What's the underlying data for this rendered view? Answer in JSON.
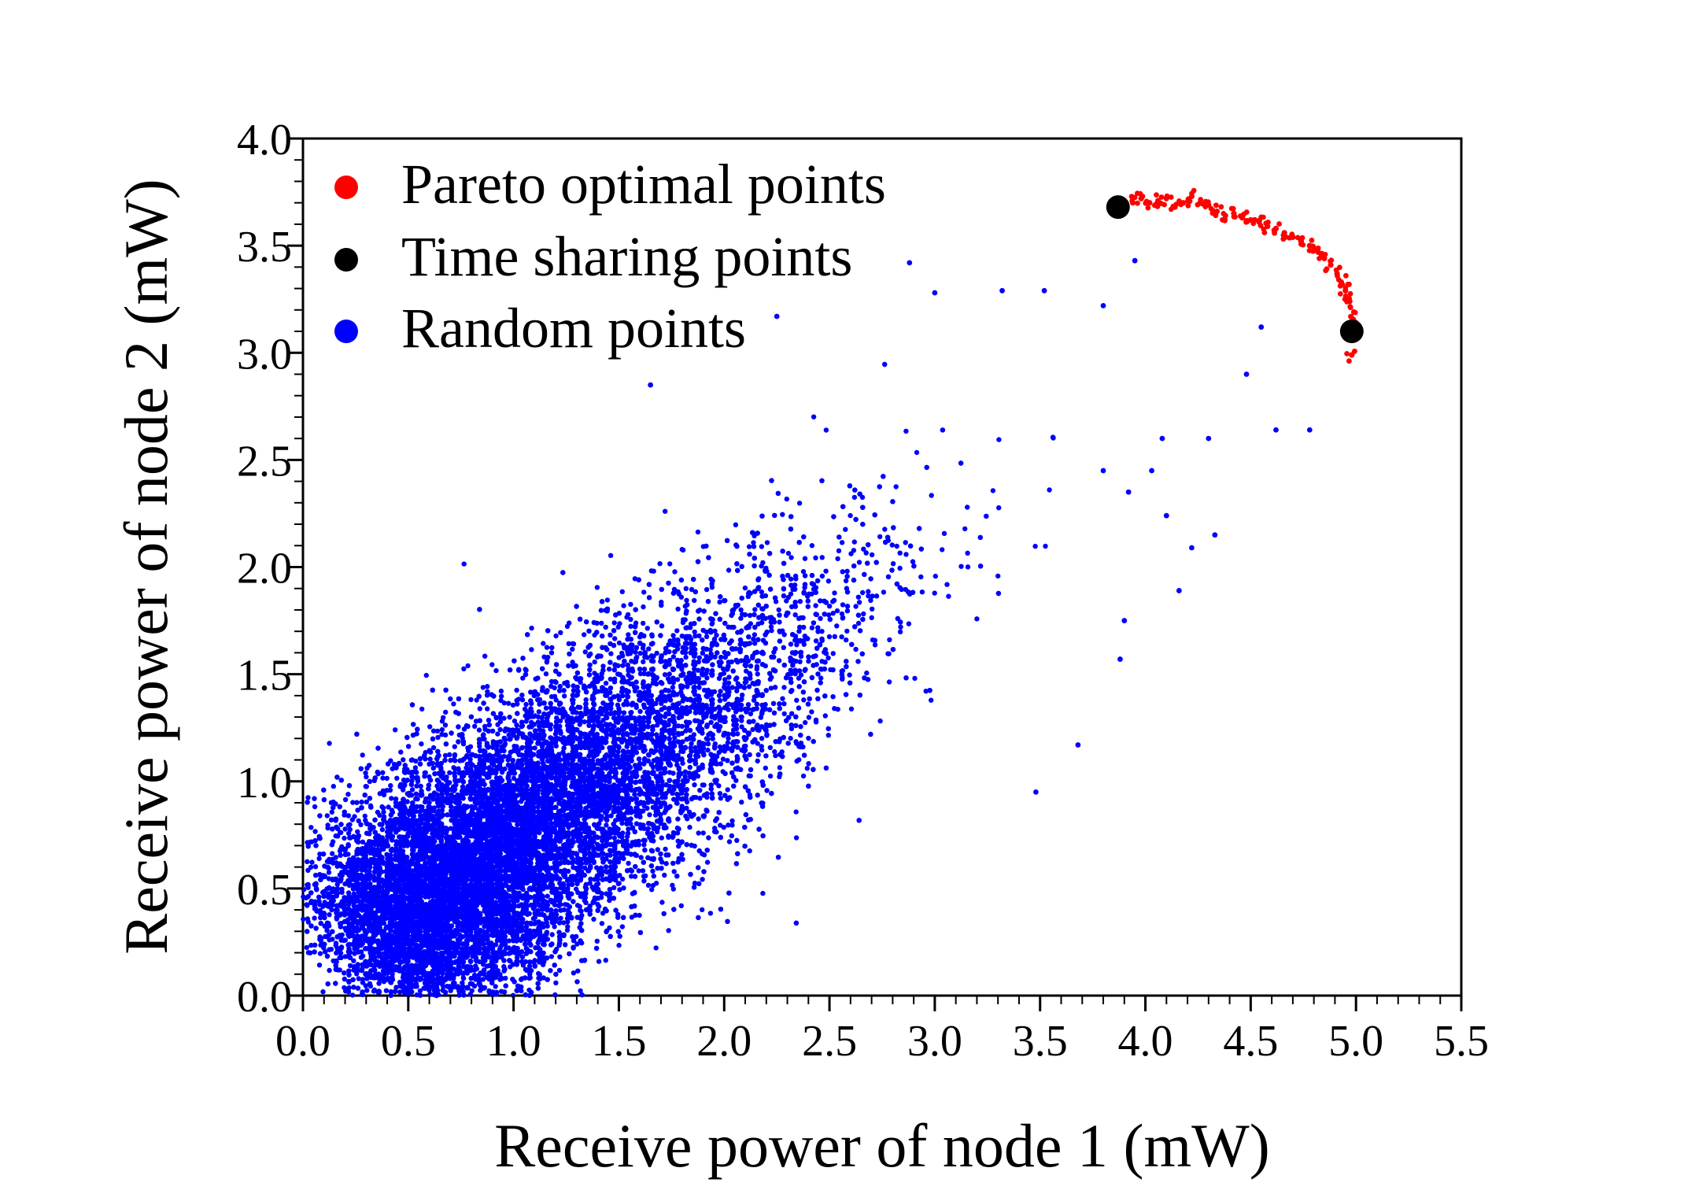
{
  "chart_data": {
    "type": "scatter",
    "title": "",
    "xlabel": "Receive power of node 1 (mW)",
    "ylabel": "Receive power of node 2 (mW)",
    "xlim": [
      0,
      5.5
    ],
    "ylim": [
      0,
      4.0
    ],
    "xticks": [
      "0.0",
      "0.5",
      "1.0",
      "1.5",
      "2.0",
      "2.5",
      "3.0",
      "3.5",
      "4.0",
      "4.5",
      "5.0",
      "5.5"
    ],
    "yticks": [
      "0.0",
      "0.5",
      "1.0",
      "1.5",
      "2.0",
      "2.5",
      "3.0",
      "3.5",
      "4.0"
    ],
    "grid": false,
    "legend_position": "top-left",
    "series": [
      {
        "name": "Pareto optimal points",
        "color": "#ff0000",
        "marker": "dot-small",
        "points": [
          [
            3.9,
            3.68
          ],
          [
            3.94,
            3.7
          ],
          [
            3.98,
            3.72
          ],
          [
            4.02,
            3.7
          ],
          [
            4.06,
            3.71
          ],
          [
            4.1,
            3.72
          ],
          [
            4.14,
            3.68
          ],
          [
            4.18,
            3.7
          ],
          [
            4.22,
            3.73
          ],
          [
            4.26,
            3.7
          ],
          [
            4.3,
            3.69
          ],
          [
            4.34,
            3.66
          ],
          [
            4.38,
            3.64
          ],
          [
            4.42,
            3.65
          ],
          [
            4.46,
            3.63
          ],
          [
            4.5,
            3.62
          ],
          [
            4.54,
            3.61
          ],
          [
            4.58,
            3.59
          ],
          [
            4.62,
            3.58
          ],
          [
            4.66,
            3.56
          ],
          [
            4.7,
            3.54
          ],
          [
            4.74,
            3.52
          ],
          [
            4.78,
            3.5
          ],
          [
            4.82,
            3.47
          ],
          [
            4.85,
            3.44
          ],
          [
            4.88,
            3.41
          ],
          [
            4.91,
            3.37
          ],
          [
            4.93,
            3.33
          ],
          [
            4.95,
            3.29
          ],
          [
            4.97,
            3.24
          ],
          [
            4.99,
            3.19
          ],
          [
            5.0,
            3.14
          ],
          [
            4.98,
            2.99
          ]
        ]
      },
      {
        "name": "Time sharing points",
        "color": "#000000",
        "marker": "dot-large",
        "points": [
          [
            3.87,
            3.68
          ],
          [
            4.98,
            3.1
          ]
        ]
      },
      {
        "name": "Random points",
        "color": "#0000ff",
        "marker": "dot-small",
        "approx_count": 30000,
        "distribution": "dense cluster centered near (0.7, 0.5), spreading up-right to about (3.0, 3.0)",
        "outliers": [
          [
            3.95,
            3.43
          ],
          [
            4.55,
            3.12
          ],
          [
            4.48,
            2.9
          ],
          [
            4.62,
            2.64
          ],
          [
            4.78,
            2.64
          ],
          [
            3.8,
            2.45
          ],
          [
            4.03,
            2.45
          ],
          [
            4.08,
            2.6
          ],
          [
            4.3,
            2.6
          ],
          [
            3.92,
            2.35
          ],
          [
            4.1,
            2.24
          ],
          [
            4.22,
            2.09
          ],
          [
            4.33,
            2.15
          ],
          [
            4.16,
            1.89
          ],
          [
            3.9,
            1.75
          ],
          [
            3.88,
            1.57
          ],
          [
            3.68,
            1.17
          ],
          [
            3.48,
            0.95
          ],
          [
            2.88,
            3.42
          ],
          [
            3.0,
            3.28
          ],
          [
            3.32,
            3.29
          ],
          [
            3.52,
            3.29
          ],
          [
            3.8,
            3.22
          ],
          [
            2.25,
            3.17
          ],
          [
            1.65,
            2.85
          ]
        ]
      }
    ]
  }
}
